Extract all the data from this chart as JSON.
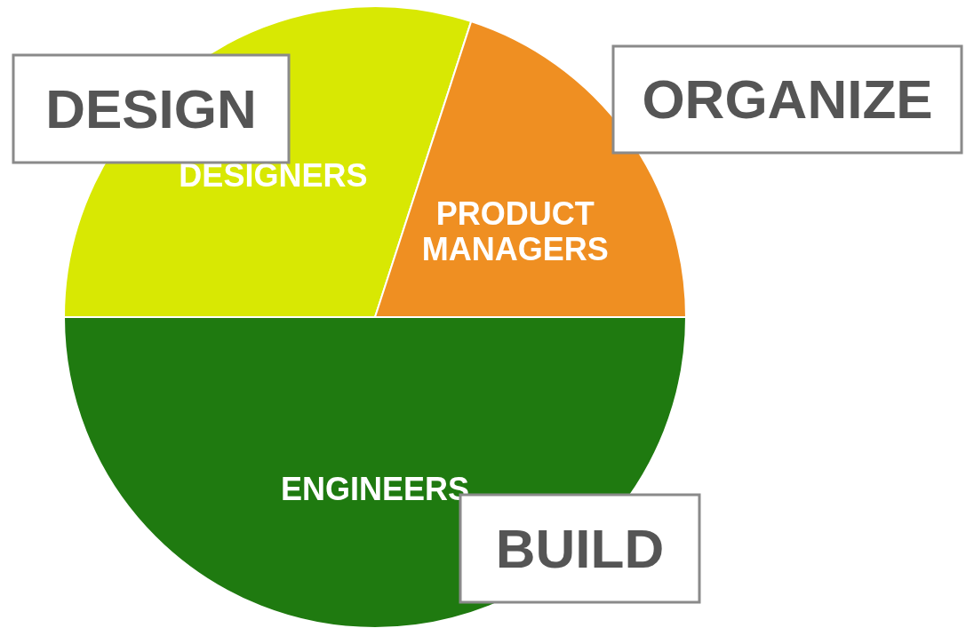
{
  "chart_data": {
    "type": "pie",
    "categories": [
      "DESIGNERS",
      "PRODUCT MANAGERS",
      "ENGINEERS"
    ],
    "values": [
      30,
      20,
      50
    ],
    "colors": [
      "#d8e803",
      "#ef8f22",
      "#1f7a10"
    ],
    "annotations": [
      "DESIGN",
      "ORGANIZE",
      "BUILD"
    ],
    "legend": false
  }
}
